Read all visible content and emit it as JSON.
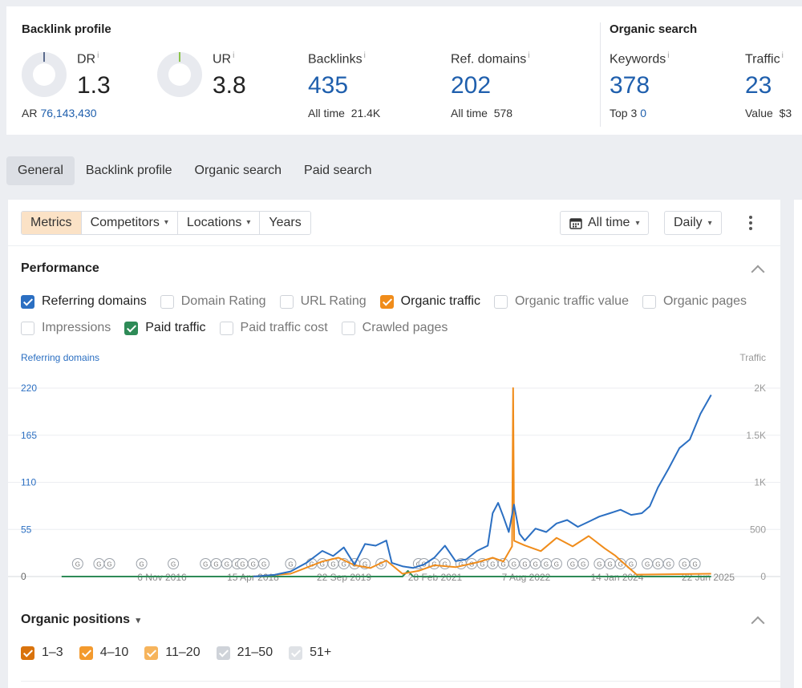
{
  "stats": {
    "backlink_profile": {
      "title": "Backlink profile",
      "dr": {
        "label": "DR",
        "value": "1.3",
        "ring_fraction": 0.013,
        "ring_color": "#5a6b8c"
      },
      "ur": {
        "label": "UR",
        "value": "3.8",
        "ring_fraction": 0.038,
        "ring_color": "#8bc34a"
      },
      "ar": {
        "label": "AR",
        "value": "76,143,430"
      },
      "backlinks": {
        "label": "Backlinks",
        "value": "435",
        "sub_label": "All time",
        "sub_value": "21.4K"
      },
      "ref_domains": {
        "label": "Ref. domains",
        "value": "202",
        "sub_label": "All time",
        "sub_value": "578"
      }
    },
    "organic_search": {
      "title": "Organic search",
      "keywords": {
        "label": "Keywords",
        "value": "378",
        "sub_label": "Top 3",
        "sub_value": "0"
      },
      "traffic": {
        "label": "Traffic",
        "value": "23",
        "sub_label": "Value",
        "sub_value": "$3"
      }
    },
    "info_mark": "i"
  },
  "tabs": [
    {
      "label": "General",
      "active": true
    },
    {
      "label": "Backlink profile"
    },
    {
      "label": "Organic search"
    },
    {
      "label": "Paid search"
    }
  ],
  "toolbar": {
    "segments": [
      {
        "label": "Metrics",
        "active": true
      },
      {
        "label": "Competitors",
        "dropdown": true
      },
      {
        "label": "Locations",
        "dropdown": true
      },
      {
        "label": "Years"
      }
    ],
    "date_range": "All time",
    "interval": "Daily"
  },
  "performance": {
    "title": "Performance",
    "metrics_row1": [
      {
        "label": "Referring domains",
        "checked": true,
        "color": "#2b6fc2"
      },
      {
        "label": "Domain Rating",
        "checked": false
      },
      {
        "label": "URL Rating",
        "checked": false
      },
      {
        "label": "Organic traffic",
        "checked": true,
        "color": "#f08c1a"
      },
      {
        "label": "Organic traffic value",
        "checked": false
      },
      {
        "label": "Organic pages",
        "checked": false
      }
    ],
    "metrics_row2": [
      {
        "label": "Impressions",
        "checked": false
      },
      {
        "label": "Paid traffic",
        "checked": true,
        "color": "#2e8b57"
      },
      {
        "label": "Paid traffic cost",
        "checked": false
      },
      {
        "label": "Crawled pages",
        "checked": false
      }
    ]
  },
  "chart_data": {
    "type": "line",
    "left_axis_label": "Referring domains",
    "right_axis_label": "Traffic",
    "left_ticks": [
      "0",
      "55",
      "110",
      "165",
      "220"
    ],
    "right_ticks": [
      "0",
      "500",
      "1K",
      "1.5K",
      "2K"
    ],
    "x_labels": [
      "6 Nov 2016",
      "15 Apr 2018",
      "22 Sep 2019",
      "28 Feb 2021",
      "7 Aug 2022",
      "14 Jan 2024",
      "22 Jun 2025"
    ],
    "left_ylim": [
      0,
      220
    ],
    "right_ylim": [
      0,
      2000
    ],
    "xlim": [
      "2015-05-01",
      "2025-10-01"
    ],
    "grid": true,
    "series": [
      {
        "name": "Referring domains",
        "axis": "left",
        "color": "#2b6fc2",
        "points": [
          [
            "2018-06-01",
            0
          ],
          [
            "2018-10-01",
            2
          ],
          [
            "2019-01-01",
            6
          ],
          [
            "2019-04-01",
            16
          ],
          [
            "2019-07-01",
            30
          ],
          [
            "2019-09-01",
            24
          ],
          [
            "2019-11-01",
            34
          ],
          [
            "2020-01-01",
            14
          ],
          [
            "2020-03-01",
            38
          ],
          [
            "2020-05-01",
            36
          ],
          [
            "2020-07-01",
            42
          ],
          [
            "2020-08-01",
            16
          ],
          [
            "2020-10-01",
            12
          ],
          [
            "2020-12-01",
            10
          ],
          [
            "2021-02-01",
            14
          ],
          [
            "2021-04-01",
            22
          ],
          [
            "2021-06-01",
            36
          ],
          [
            "2021-08-01",
            18
          ],
          [
            "2021-10-01",
            20
          ],
          [
            "2021-12-01",
            30
          ],
          [
            "2022-02-01",
            36
          ],
          [
            "2022-03-01",
            74
          ],
          [
            "2022-04-01",
            86
          ],
          [
            "2022-05-01",
            70
          ],
          [
            "2022-06-01",
            52
          ],
          [
            "2022-07-01",
            84
          ],
          [
            "2022-08-01",
            50
          ],
          [
            "2022-09-01",
            42
          ],
          [
            "2022-11-01",
            56
          ],
          [
            "2023-01-01",
            52
          ],
          [
            "2023-03-01",
            62
          ],
          [
            "2023-05-01",
            66
          ],
          [
            "2023-07-01",
            58
          ],
          [
            "2023-09-01",
            64
          ],
          [
            "2023-11-01",
            70
          ],
          [
            "2024-01-01",
            74
          ],
          [
            "2024-03-01",
            78
          ],
          [
            "2024-05-01",
            72
          ],
          [
            "2024-07-01",
            74
          ],
          [
            "2024-08-15",
            82
          ],
          [
            "2024-10-01",
            104
          ],
          [
            "2024-12-01",
            126
          ],
          [
            "2025-02-01",
            150
          ],
          [
            "2025-04-01",
            160
          ],
          [
            "2025-06-01",
            190
          ],
          [
            "2025-08-01",
            212
          ]
        ]
      },
      {
        "name": "Organic traffic",
        "axis": "right",
        "color": "#f08c1a",
        "points": [
          [
            "2018-06-01",
            0
          ],
          [
            "2019-01-01",
            30
          ],
          [
            "2019-07-01",
            160
          ],
          [
            "2019-10-01",
            200
          ],
          [
            "2020-01-01",
            120
          ],
          [
            "2020-04-01",
            90
          ],
          [
            "2020-07-01",
            170
          ],
          [
            "2020-10-01",
            30
          ],
          [
            "2021-01-01",
            60
          ],
          [
            "2021-04-01",
            120
          ],
          [
            "2021-08-01",
            100
          ],
          [
            "2021-12-01",
            150
          ],
          [
            "2022-03-01",
            200
          ],
          [
            "2022-05-01",
            160
          ],
          [
            "2022-06-20",
            320
          ],
          [
            "2022-06-26",
            2000
          ],
          [
            "2022-07-02",
            380
          ],
          [
            "2022-09-01",
            330
          ],
          [
            "2022-12-01",
            270
          ],
          [
            "2023-03-01",
            410
          ],
          [
            "2023-06-01",
            320
          ],
          [
            "2023-09-01",
            430
          ],
          [
            "2023-12-01",
            300
          ],
          [
            "2024-02-01",
            220
          ],
          [
            "2024-04-01",
            120
          ],
          [
            "2024-06-01",
            20
          ],
          [
            "2025-08-01",
            30
          ]
        ]
      },
      {
        "name": "Paid traffic",
        "axis": "right",
        "color": "#2e8b57",
        "points": [
          [
            "2015-06-01",
            0
          ],
          [
            "2020-10-01",
            0
          ],
          [
            "2020-11-01",
            60
          ],
          [
            "2020-12-01",
            0
          ],
          [
            "2025-08-01",
            0
          ]
        ]
      }
    ]
  },
  "organic_positions": {
    "title": "Organic positions",
    "items": [
      {
        "label": "1–3",
        "checked": true,
        "color": "#d9730d"
      },
      {
        "label": "4–10",
        "checked": true,
        "color": "#f39a2e"
      },
      {
        "label": "11–20",
        "checked": true,
        "color": "#f6b45c"
      },
      {
        "label": "21–50",
        "checked": true,
        "color": "#cfd3d9"
      },
      {
        "label": "51+",
        "checked": true,
        "color": "#dfe2e6"
      }
    ]
  },
  "google_markers": {
    "label": "G",
    "dates": [
      "2015-09-01",
      "2016-01-01",
      "2016-03-01",
      "2016-09-01",
      "2017-03-01",
      "2017-09-01",
      "2017-11-01",
      "2018-01-01",
      "2018-03-01",
      "2018-04-01",
      "2018-06-01",
      "2018-08-01",
      "2019-01-01",
      "2019-05-01",
      "2019-07-01",
      "2019-09-01",
      "2019-11-01",
      "2020-01-01",
      "2020-03-01",
      "2020-06-01",
      "2021-01-01",
      "2021-02-01",
      "2021-04-01",
      "2021-06-01",
      "2021-09-01",
      "2021-11-01",
      "2022-01-01",
      "2022-03-01",
      "2022-05-01",
      "2022-07-01",
      "2022-09-01",
      "2022-11-01",
      "2023-01-01",
      "2023-03-01",
      "2023-06-01",
      "2023-08-01",
      "2023-11-01",
      "2024-01-01",
      "2024-03-01",
      "2024-05-01",
      "2024-08-01",
      "2024-10-01",
      "2024-12-01",
      "2025-03-01",
      "2025-05-01"
    ]
  }
}
